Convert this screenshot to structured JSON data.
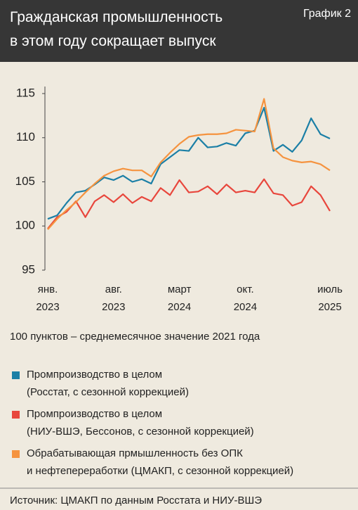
{
  "chart_data": {
    "type": "line",
    "title": "Гражданская промышленность\nв этом году сокращает выпуск",
    "label": "График 2",
    "note": "100 пунктов – среднемесячное значение 2021 года",
    "source": "Источник: ЦМАКП по данным Росстата и НИУ-ВШЭ",
    "categories": [
      "янв.\n2023",
      null,
      null,
      null,
      null,
      null,
      null,
      "авг.\n2023",
      null,
      null,
      null,
      null,
      null,
      null,
      "март\n2024",
      null,
      null,
      null,
      null,
      null,
      null,
      "окт.\n2024",
      null,
      null,
      null,
      null,
      null,
      null,
      null,
      null,
      "июль\n2025"
    ],
    "ylim": [
      95,
      115
    ],
    "yticks": [
      95,
      100,
      105,
      110,
      115
    ],
    "series": [
      {
        "name": "Промпроизводство в целом\n(Росстат, с сезонной коррекцией)",
        "color": "#1b7fa6",
        "values": [
          100.8,
          101.2,
          102.6,
          103.8,
          104.0,
          104.7,
          105.5,
          105.2,
          105.7,
          105.0,
          105.3,
          104.8,
          107.0,
          107.8,
          108.6,
          108.5,
          110.0,
          108.9,
          109.0,
          109.4,
          109.1,
          110.5,
          110.8,
          113.4,
          108.5,
          109.2,
          108.4,
          109.7,
          112.2,
          110.4,
          109.9
        ]
      },
      {
        "name": "Промпроизводство в целом\n(НИУ-ВШЭ, Бессонов, с сезонной коррекцией)",
        "color": "#e8463c",
        "values": [
          99.7,
          101.0,
          101.6,
          102.8,
          101.0,
          102.8,
          103.5,
          102.7,
          103.6,
          102.6,
          103.3,
          102.8,
          104.3,
          103.5,
          105.2,
          103.8,
          103.9,
          104.5,
          103.6,
          104.7,
          103.8,
          104.0,
          103.8,
          105.3,
          103.7,
          103.5,
          102.3,
          102.7,
          104.5,
          103.5,
          101.7
        ]
      },
      {
        "name": "Обрабатывающая прмышленность без ОПК\nи нефтепереработки (ЦМАКП, с сезонной коррекцией)",
        "color": "#f5933f",
        "values": [
          99.6,
          100.8,
          101.8,
          102.7,
          103.8,
          104.8,
          105.7,
          106.2,
          106.5,
          106.3,
          106.3,
          105.6,
          107.2,
          108.3,
          109.3,
          110.1,
          110.3,
          110.4,
          110.4,
          110.5,
          110.9,
          110.8,
          110.7,
          114.4,
          108.8,
          107.8,
          107.4,
          107.2,
          107.3,
          107.0,
          106.3
        ]
      }
    ]
  }
}
